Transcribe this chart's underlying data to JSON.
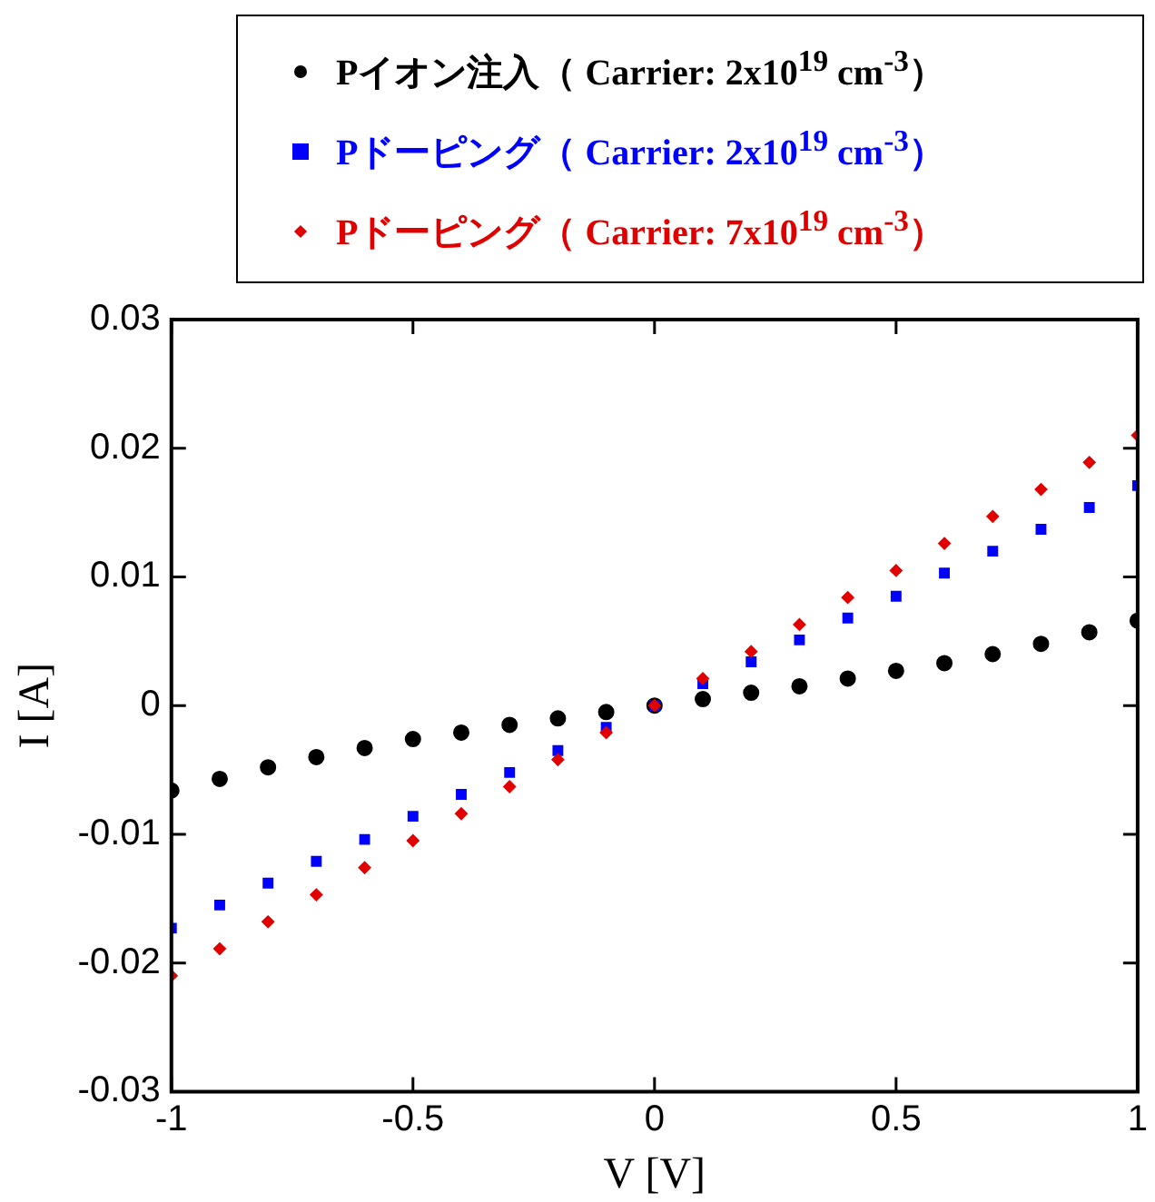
{
  "chart_data": {
    "type": "scatter",
    "xlabel": "V [V]",
    "ylabel": "I [A]",
    "x": [
      -1,
      -0.9,
      -0.8,
      -0.7,
      -0.6,
      -0.5,
      -0.4,
      -0.3,
      -0.2,
      -0.1,
      0,
      0.1,
      0.2,
      0.3,
      0.4,
      0.5,
      0.6,
      0.7,
      0.8,
      0.9,
      1
    ],
    "series": [
      {
        "name": "Pイオン注入（ Carrier: 2x10$^{19}$ cm$^{-3}$）",
        "color": "#000000",
        "marker": "circle",
        "values": [
          -0.0066,
          -0.0057,
          -0.0048,
          -0.004,
          -0.0033,
          -0.0026,
          -0.0021,
          -0.0015,
          -0.001,
          -0.0005,
          0,
          0.0005,
          0.001,
          0.0015,
          0.0021,
          0.0027,
          0.0033,
          0.004,
          0.0048,
          0.0057,
          0.0066
        ]
      },
      {
        "name": "Pドーピング（ Carrier: 2x10$^{19}$ cm$^{-3}$）",
        "color": "#0000ff",
        "marker": "square",
        "values": [
          -0.0173,
          -0.0155,
          -0.0138,
          -0.0121,
          -0.0104,
          -0.0086,
          -0.0069,
          -0.0052,
          -0.0035,
          -0.0017,
          0,
          0.0017,
          0.0034,
          0.0051,
          0.0068,
          0.0085,
          0.0103,
          0.012,
          0.0137,
          0.0154,
          0.0171
        ]
      },
      {
        "name": "Pドーピング（ Carrier: 7x10$^{19}$ cm$^{-3}$）",
        "color": "#e00000",
        "marker": "diamond",
        "values": [
          -0.021,
          -0.0189,
          -0.0168,
          -0.0147,
          -0.0126,
          -0.0105,
          -0.0084,
          -0.0063,
          -0.0042,
          -0.0021,
          0,
          0.0021,
          0.0042,
          0.0063,
          0.0084,
          0.0105,
          0.0126,
          0.0147,
          0.0168,
          0.0189,
          0.021
        ]
      }
    ],
    "xlim": [
      -1,
      1
    ],
    "xticks": [
      -1,
      -0.5,
      0,
      0.5,
      1
    ],
    "ylim": [
      -0.03,
      0.03
    ],
    "yticks": [
      -0.03,
      -0.02,
      -0.01,
      0,
      0.01,
      0.02,
      0.03
    ],
    "grid": false,
    "legend": "top"
  }
}
